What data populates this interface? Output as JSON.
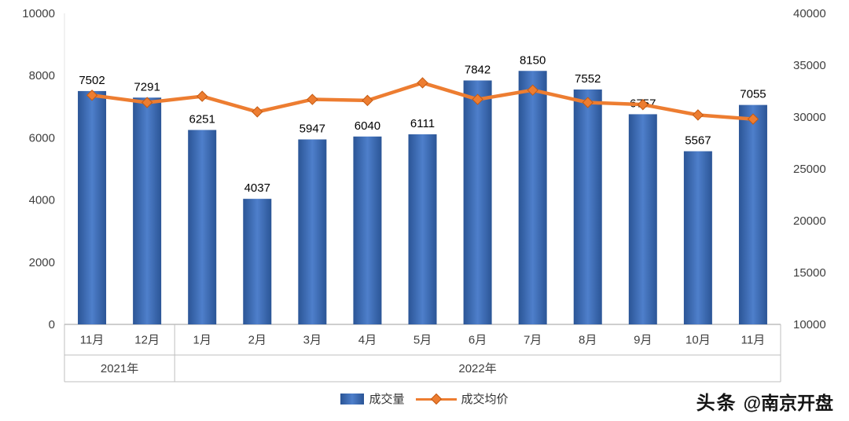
{
  "chart_data": {
    "type": "combo-bar-line",
    "title": "",
    "categories": [
      "11月",
      "12月",
      "1月",
      "2月",
      "3月",
      "4月",
      "5月",
      "6月",
      "7月",
      "8月",
      "9月",
      "10月",
      "11月"
    ],
    "category_groups": [
      {
        "label": "2021年",
        "count": 2
      },
      {
        "label": "2022年",
        "count": 11
      }
    ],
    "series": [
      {
        "name": "成交量",
        "type": "bar",
        "axis": "left",
        "values": [
          7502,
          7291,
          6251,
          4037,
          5947,
          6040,
          6111,
          7842,
          8150,
          7552,
          6757,
          5567,
          7055
        ],
        "data_labels": true
      },
      {
        "name": "成交均价",
        "type": "line",
        "axis": "right",
        "estimated": true,
        "values": [
          32100,
          31400,
          32000,
          30500,
          31700,
          31600,
          33300,
          31700,
          32600,
          31400,
          31200,
          30200,
          29800
        ]
      }
    ],
    "left_axis": {
      "min": 0,
      "max": 10000,
      "ticks": [
        0,
        2000,
        4000,
        6000,
        8000,
        10000
      ]
    },
    "right_axis": {
      "min": 10000,
      "max": 40000,
      "ticks": [
        10000,
        15000,
        20000,
        25000,
        30000,
        35000,
        40000
      ]
    },
    "legend_position": "bottom",
    "grid": false,
    "colors": {
      "bar_edge": "#2B5596",
      "bar_mid": "#4E7FCB",
      "line": "#ED7D31",
      "marker_stroke": "#C55A11",
      "tick_text": "#3F3F3F",
      "label_text": "#000000",
      "axis_line": "#9D9D9D",
      "band_line": "#BFBFBF"
    }
  },
  "watermark": {
    "logo_text": "头条",
    "handle": "@南京开盘"
  }
}
